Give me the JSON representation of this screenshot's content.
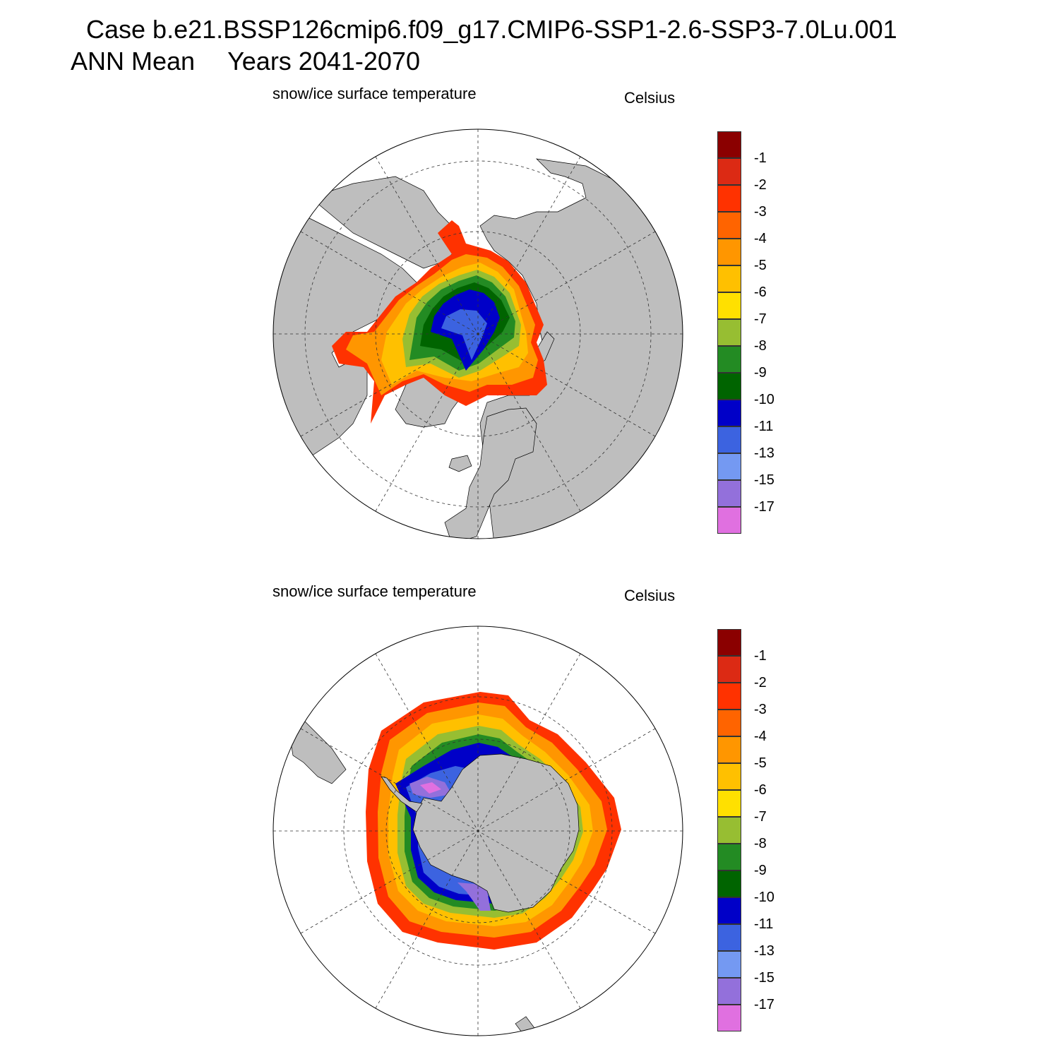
{
  "header": {
    "case_line": "Case b.e21.BSSP126cmip6.f09_g17.CMIP6-SSP1-2.6-SSP3-7.0Lu.001",
    "period": "ANN Mean",
    "years": "Years 2041-2070"
  },
  "panels": [
    {
      "hemisphere": "north",
      "variable_label": "snow/ice surface temperature",
      "units_label": "Celsius"
    },
    {
      "hemisphere": "south",
      "variable_label": "snow/ice surface temperature",
      "units_label": "Celsius"
    }
  ],
  "colorbar": {
    "colors": [
      "#e070e0",
      "#9370db",
      "#7499f2",
      "#3c63e0",
      "#0000c8",
      "#006400",
      "#238b23",
      "#97be32",
      "#ffe000",
      "#ffc000",
      "#ff9600",
      "#ff6400",
      "#ff3200",
      "#dc2a14",
      "#8b0000"
    ],
    "labels": [
      "-17",
      "-15",
      "-13",
      "-11",
      "-10",
      "-9",
      "-8",
      "-7",
      "-6",
      "-5",
      "-4",
      "-3",
      "-2",
      "-1"
    ]
  },
  "colors": {
    "land": "#bebebe",
    "ice_free_ocean": "#ffffff",
    "grid": "#333333"
  }
}
